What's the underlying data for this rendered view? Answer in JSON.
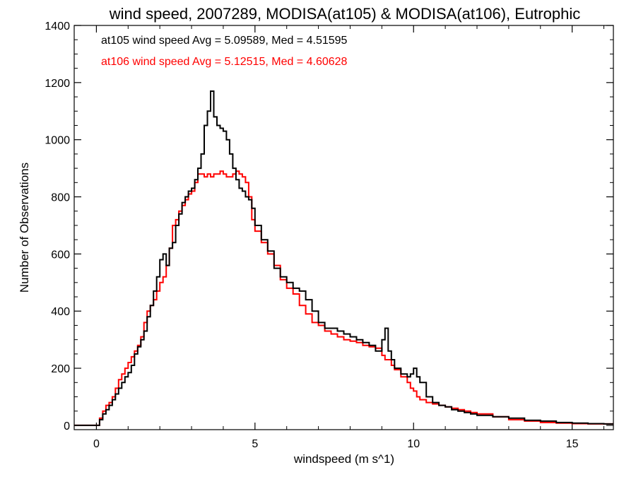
{
  "chart_data": {
    "type": "line",
    "title": "wind speed, 2007289, MODISA(at105) & MODISA(at106), Eutrophic",
    "xlabel": "windspeed (m s^1)",
    "ylabel": "Number of Observations",
    "xlim": [
      -0.7,
      16.3
    ],
    "ylim": [
      -15,
      1400
    ],
    "x_ticks": [
      0,
      5,
      10,
      15
    ],
    "y_ticks": [
      0,
      200,
      400,
      600,
      800,
      1000,
      1200,
      1400
    ],
    "grid": false,
    "legend_position": "top-left",
    "series": [
      {
        "name": "at105",
        "label": "at105 wind speed Avg = 5.09589, Med = 4.51595",
        "color": "#000000",
        "x": [
          -0.7,
          0,
          0.1,
          0.2,
          0.3,
          0.4,
          0.5,
          0.6,
          0.7,
          0.8,
          0.9,
          1.0,
          1.1,
          1.2,
          1.3,
          1.4,
          1.5,
          1.6,
          1.7,
          1.8,
          1.9,
          2.0,
          2.1,
          2.2,
          2.3,
          2.4,
          2.5,
          2.6,
          2.7,
          2.8,
          2.9,
          3.0,
          3.1,
          3.2,
          3.3,
          3.4,
          3.5,
          3.6,
          3.7,
          3.8,
          3.9,
          4.0,
          4.1,
          4.2,
          4.3,
          4.4,
          4.5,
          4.6,
          4.7,
          4.8,
          4.9,
          5.0,
          5.2,
          5.4,
          5.6,
          5.8,
          6.0,
          6.2,
          6.4,
          6.6,
          6.8,
          7.0,
          7.2,
          7.4,
          7.6,
          7.8,
          8.0,
          8.2,
          8.4,
          8.6,
          8.8,
          9.0,
          9.1,
          9.2,
          9.3,
          9.4,
          9.6,
          9.8,
          9.9,
          10.0,
          10.1,
          10.2,
          10.4,
          10.6,
          10.8,
          11.0,
          11.2,
          11.4,
          11.6,
          11.8,
          12.0,
          12.5,
          13.0,
          13.5,
          14.0,
          14.5,
          15.0,
          15.5,
          16.0,
          16.3
        ],
        "y": [
          0,
          0,
          20,
          40,
          55,
          70,
          90,
          110,
          130,
          150,
          170,
          185,
          210,
          250,
          275,
          300,
          330,
          380,
          420,
          470,
          520,
          580,
          600,
          560,
          620,
          640,
          700,
          740,
          780,
          800,
          820,
          830,
          860,
          900,
          950,
          1050,
          1100,
          1170,
          1080,
          1050,
          1040,
          1030,
          1000,
          950,
          900,
          860,
          830,
          820,
          800,
          790,
          760,
          700,
          650,
          610,
          550,
          520,
          500,
          480,
          470,
          440,
          400,
          360,
          340,
          340,
          330,
          320,
          310,
          300,
          290,
          280,
          260,
          300,
          340,
          260,
          230,
          200,
          180,
          170,
          180,
          200,
          170,
          150,
          100,
          80,
          70,
          65,
          55,
          50,
          45,
          40,
          35,
          30,
          25,
          18,
          15,
          10,
          8,
          6,
          5,
          5
        ]
      },
      {
        "name": "at106",
        "label": "at106 wind speed Avg = 5.12515, Med = 4.60628",
        "color": "#ff0000",
        "x": [
          -0.7,
          0,
          0.1,
          0.2,
          0.3,
          0.4,
          0.5,
          0.6,
          0.7,
          0.8,
          0.9,
          1.0,
          1.1,
          1.2,
          1.3,
          1.4,
          1.5,
          1.6,
          1.7,
          1.8,
          1.9,
          2.0,
          2.1,
          2.2,
          2.3,
          2.4,
          2.5,
          2.6,
          2.7,
          2.8,
          2.9,
          3.0,
          3.1,
          3.2,
          3.3,
          3.4,
          3.5,
          3.6,
          3.7,
          3.8,
          3.9,
          4.0,
          4.1,
          4.2,
          4.3,
          4.4,
          4.5,
          4.6,
          4.7,
          4.8,
          4.9,
          5.0,
          5.2,
          5.4,
          5.6,
          5.8,
          6.0,
          6.2,
          6.4,
          6.6,
          6.8,
          7.0,
          7.2,
          7.4,
          7.6,
          7.8,
          8.0,
          8.2,
          8.4,
          8.6,
          8.8,
          9.0,
          9.1,
          9.2,
          9.3,
          9.4,
          9.6,
          9.8,
          9.9,
          10.0,
          10.1,
          10.2,
          10.4,
          10.6,
          10.8,
          11.0,
          11.2,
          11.4,
          11.6,
          11.8,
          12.0,
          12.5,
          13.0,
          13.5,
          14.0,
          14.5,
          15.0,
          15.5,
          16.0,
          16.3
        ],
        "y": [
          0,
          0,
          25,
          50,
          70,
          80,
          100,
          130,
          160,
          180,
          200,
          220,
          240,
          260,
          280,
          310,
          360,
          400,
          420,
          440,
          470,
          500,
          520,
          560,
          620,
          700,
          720,
          750,
          770,
          790,
          810,
          820,
          850,
          880,
          880,
          870,
          880,
          870,
          880,
          880,
          890,
          880,
          870,
          870,
          880,
          890,
          880,
          870,
          850,
          800,
          720,
          680,
          640,
          600,
          560,
          510,
          480,
          460,
          420,
          390,
          360,
          350,
          330,
          320,
          310,
          300,
          295,
          290,
          280,
          275,
          270,
          245,
          230,
          230,
          210,
          195,
          170,
          150,
          130,
          120,
          100,
          90,
          80,
          75,
          70,
          65,
          60,
          55,
          50,
          45,
          40,
          30,
          20,
          15,
          10,
          8,
          6,
          5,
          5,
          5
        ]
      }
    ]
  }
}
